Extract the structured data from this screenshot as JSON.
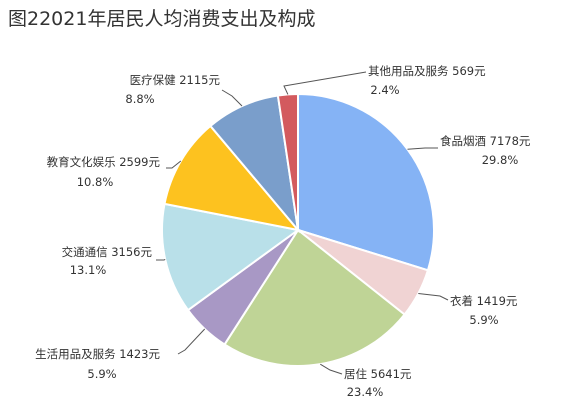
{
  "chart_data": {
    "type": "pie",
    "title": "图22021年居民人均消费支出及构成",
    "slices": [
      {
        "name": "食品烟酒",
        "amount": "7178元",
        "value": 7178,
        "percent": "29.8%",
        "color": "#85b3f5"
      },
      {
        "name": "衣着",
        "amount": "1419元",
        "value": 1419,
        "percent": "5.9%",
        "color": "#f0d3d3"
      },
      {
        "name": "居住",
        "amount": "5641元",
        "value": 5641,
        "percent": "23.4%",
        "color": "#bfd496"
      },
      {
        "name": "生活用品及服务",
        "amount": "1423元",
        "value": 1423,
        "percent": "5.9%",
        "color": "#a898c5"
      },
      {
        "name": "交通通信",
        "amount": "3156元",
        "value": 3156,
        "percent": "13.1%",
        "color": "#b9e0e9"
      },
      {
        "name": "教育文化娱乐",
        "amount": "2599元",
        "value": 2599,
        "percent": "10.8%",
        "color": "#fdc21f"
      },
      {
        "name": "医疗保健",
        "amount": "2115元",
        "value": 2115,
        "percent": "8.8%",
        "color": "#7a9ecb"
      },
      {
        "name": "其他用品及服务",
        "amount": "569元",
        "value": 569,
        "percent": "2.4%",
        "color": "#d35a5e"
      }
    ]
  }
}
